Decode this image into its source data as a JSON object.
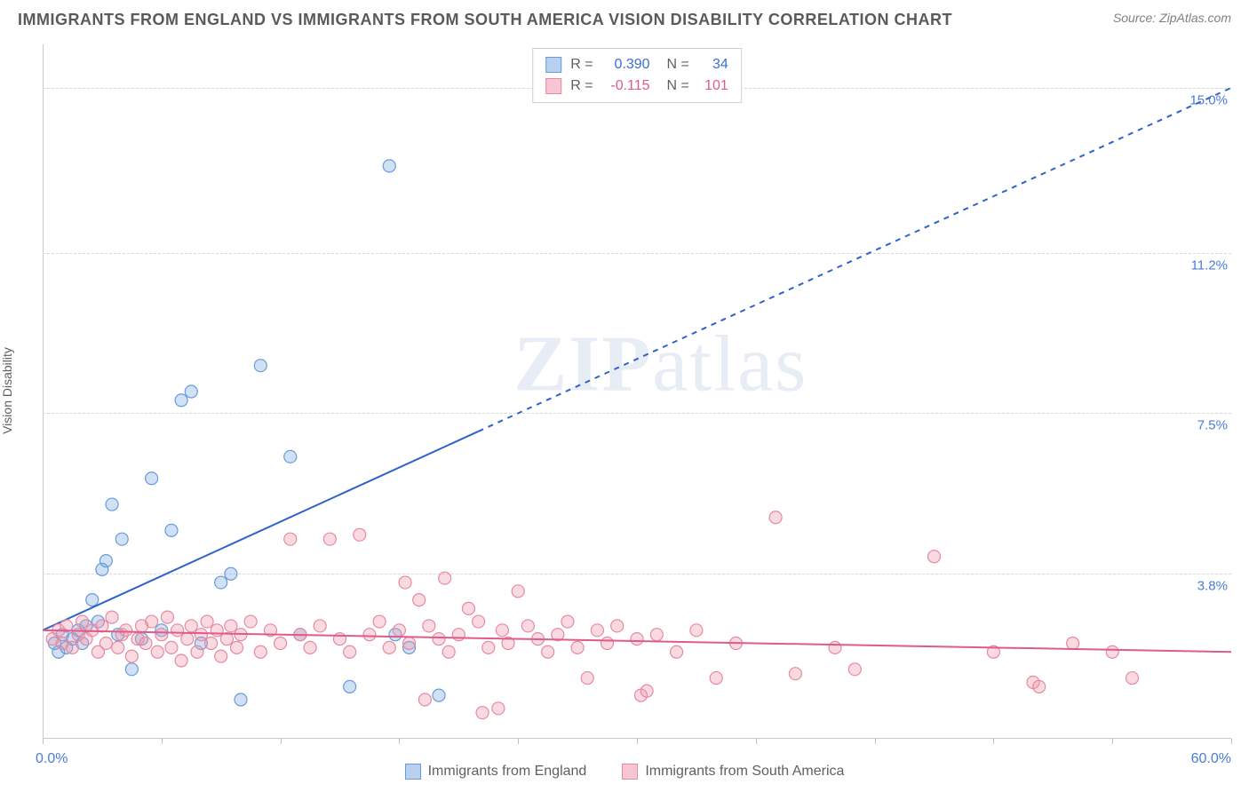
{
  "title": "IMMIGRANTS FROM ENGLAND VS IMMIGRANTS FROM SOUTH AMERICA VISION DISABILITY CORRELATION CHART",
  "source": "Source: ZipAtlas.com",
  "y_axis_label": "Vision Disability",
  "watermark_a": "ZIP",
  "watermark_b": "atlas",
  "chart": {
    "type": "scatter",
    "xlim": [
      0,
      60
    ],
    "ylim": [
      0,
      16
    ],
    "x_left_label": "0.0%",
    "x_right_label": "60.0%",
    "y_ticks": [
      3.8,
      7.5,
      11.2,
      15.0
    ],
    "y_tick_labels": [
      "3.8%",
      "7.5%",
      "11.2%",
      "15.0%"
    ],
    "x_tick_positions": [
      0,
      6,
      12,
      18,
      24,
      30,
      36,
      42,
      48,
      54,
      60
    ],
    "background_color": "#ffffff",
    "grid_color": "#d8d8d8",
    "axis_color": "#c8c8c8",
    "marker_radius": 7,
    "marker_stroke_width": 1.2,
    "series": [
      {
        "name": "Immigrants from England",
        "color_fill": "rgba(120,165,225,0.35)",
        "color_stroke": "#6a9bd8",
        "swatch_fill": "#b9d0ef",
        "swatch_border": "#6a9bd8",
        "r_value": "0.390",
        "r_value_color": "#3b6fd1",
        "n_value": "34",
        "n_value_color": "#3b6fd1",
        "trend": {
          "x1": 0,
          "y1": 2.5,
          "x2": 60,
          "y2": 15.0,
          "solid_until_x": 22,
          "color": "#2e63c9",
          "width": 2
        },
        "points": [
          [
            0.6,
            2.2
          ],
          [
            0.8,
            2.0
          ],
          [
            1.0,
            2.4
          ],
          [
            1.2,
            2.1
          ],
          [
            1.5,
            2.3
          ],
          [
            1.8,
            2.5
          ],
          [
            2.0,
            2.2
          ],
          [
            2.2,
            2.6
          ],
          [
            2.5,
            3.2
          ],
          [
            2.8,
            2.7
          ],
          [
            3.0,
            3.9
          ],
          [
            3.2,
            4.1
          ],
          [
            3.5,
            5.4
          ],
          [
            3.8,
            2.4
          ],
          [
            4.0,
            4.6
          ],
          [
            4.5,
            1.6
          ],
          [
            5.0,
            2.3
          ],
          [
            5.5,
            6.0
          ],
          [
            6.0,
            2.5
          ],
          [
            6.5,
            4.8
          ],
          [
            7.0,
            7.8
          ],
          [
            7.5,
            8.0
          ],
          [
            8.0,
            2.2
          ],
          [
            9.0,
            3.6
          ],
          [
            9.5,
            3.8
          ],
          [
            10.0,
            0.9
          ],
          [
            11.0,
            8.6
          ],
          [
            12.5,
            6.5
          ],
          [
            13.0,
            2.4
          ],
          [
            15.5,
            1.2
          ],
          [
            17.5,
            13.2
          ],
          [
            17.8,
            2.4
          ],
          [
            18.5,
            2.1
          ],
          [
            20.0,
            1.0
          ]
        ]
      },
      {
        "name": "Immigrants from South America",
        "color_fill": "rgba(240,150,170,0.35)",
        "color_stroke": "#e68aa0",
        "swatch_fill": "#f6c6d2",
        "swatch_border": "#e68aa0",
        "r_value": "-0.115",
        "r_value_color": "#e05a8a",
        "n_value": "101",
        "n_value_color": "#e05a8a",
        "trend": {
          "x1": 0,
          "y1": 2.5,
          "x2": 60,
          "y2": 2.0,
          "solid_until_x": 60,
          "color": "#e05a8a",
          "width": 2
        },
        "points": [
          [
            0.5,
            2.3
          ],
          [
            0.8,
            2.5
          ],
          [
            1.0,
            2.2
          ],
          [
            1.2,
            2.6
          ],
          [
            1.5,
            2.1
          ],
          [
            1.8,
            2.4
          ],
          [
            2.0,
            2.7
          ],
          [
            2.2,
            2.3
          ],
          [
            2.5,
            2.5
          ],
          [
            2.8,
            2.0
          ],
          [
            3.0,
            2.6
          ],
          [
            3.2,
            2.2
          ],
          [
            3.5,
            2.8
          ],
          [
            3.8,
            2.1
          ],
          [
            4.0,
            2.4
          ],
          [
            4.2,
            2.5
          ],
          [
            4.5,
            1.9
          ],
          [
            4.8,
            2.3
          ],
          [
            5.0,
            2.6
          ],
          [
            5.2,
            2.2
          ],
          [
            5.5,
            2.7
          ],
          [
            5.8,
            2.0
          ],
          [
            6.0,
            2.4
          ],
          [
            6.3,
            2.8
          ],
          [
            6.5,
            2.1
          ],
          [
            6.8,
            2.5
          ],
          [
            7.0,
            1.8
          ],
          [
            7.3,
            2.3
          ],
          [
            7.5,
            2.6
          ],
          [
            7.8,
            2.0
          ],
          [
            8.0,
            2.4
          ],
          [
            8.3,
            2.7
          ],
          [
            8.5,
            2.2
          ],
          [
            8.8,
            2.5
          ],
          [
            9.0,
            1.9
          ],
          [
            9.3,
            2.3
          ],
          [
            9.5,
            2.6
          ],
          [
            9.8,
            2.1
          ],
          [
            10.0,
            2.4
          ],
          [
            10.5,
            2.7
          ],
          [
            11.0,
            2.0
          ],
          [
            11.5,
            2.5
          ],
          [
            12.0,
            2.2
          ],
          [
            12.5,
            4.6
          ],
          [
            13.0,
            2.4
          ],
          [
            13.5,
            2.1
          ],
          [
            14.0,
            2.6
          ],
          [
            14.5,
            4.6
          ],
          [
            15.0,
            2.3
          ],
          [
            15.5,
            2.0
          ],
          [
            16.0,
            4.7
          ],
          [
            16.5,
            2.4
          ],
          [
            17.0,
            2.7
          ],
          [
            17.5,
            2.1
          ],
          [
            18.0,
            2.5
          ],
          [
            18.3,
            3.6
          ],
          [
            18.5,
            2.2
          ],
          [
            19.0,
            3.2
          ],
          [
            19.3,
            0.9
          ],
          [
            19.5,
            2.6
          ],
          [
            20.0,
            2.3
          ],
          [
            20.3,
            3.7
          ],
          [
            20.5,
            2.0
          ],
          [
            21.0,
            2.4
          ],
          [
            21.5,
            3.0
          ],
          [
            22.0,
            2.7
          ],
          [
            22.2,
            0.6
          ],
          [
            22.5,
            2.1
          ],
          [
            23.0,
            0.7
          ],
          [
            23.2,
            2.5
          ],
          [
            23.5,
            2.2
          ],
          [
            24.0,
            3.4
          ],
          [
            24.5,
            2.6
          ],
          [
            25.0,
            2.3
          ],
          [
            25.5,
            2.0
          ],
          [
            26.0,
            2.4
          ],
          [
            26.5,
            2.7
          ],
          [
            27.0,
            2.1
          ],
          [
            27.5,
            1.4
          ],
          [
            28.0,
            2.5
          ],
          [
            28.5,
            2.2
          ],
          [
            29.0,
            2.6
          ],
          [
            30.0,
            2.3
          ],
          [
            30.2,
            1.0
          ],
          [
            30.5,
            1.1
          ],
          [
            31.0,
            2.4
          ],
          [
            32.0,
            2.0
          ],
          [
            33.0,
            2.5
          ],
          [
            34.0,
            1.4
          ],
          [
            35.0,
            2.2
          ],
          [
            37.0,
            5.1
          ],
          [
            38.0,
            1.5
          ],
          [
            40.0,
            2.1
          ],
          [
            41.0,
            1.6
          ],
          [
            45.0,
            4.2
          ],
          [
            48.0,
            2.0
          ],
          [
            50.0,
            1.3
          ],
          [
            50.3,
            1.2
          ],
          [
            52.0,
            2.2
          ],
          [
            54.0,
            2.0
          ],
          [
            55.0,
            1.4
          ]
        ]
      }
    ]
  },
  "legend": {
    "series_a": "Immigrants from England",
    "series_b": "Immigrants from South America"
  }
}
